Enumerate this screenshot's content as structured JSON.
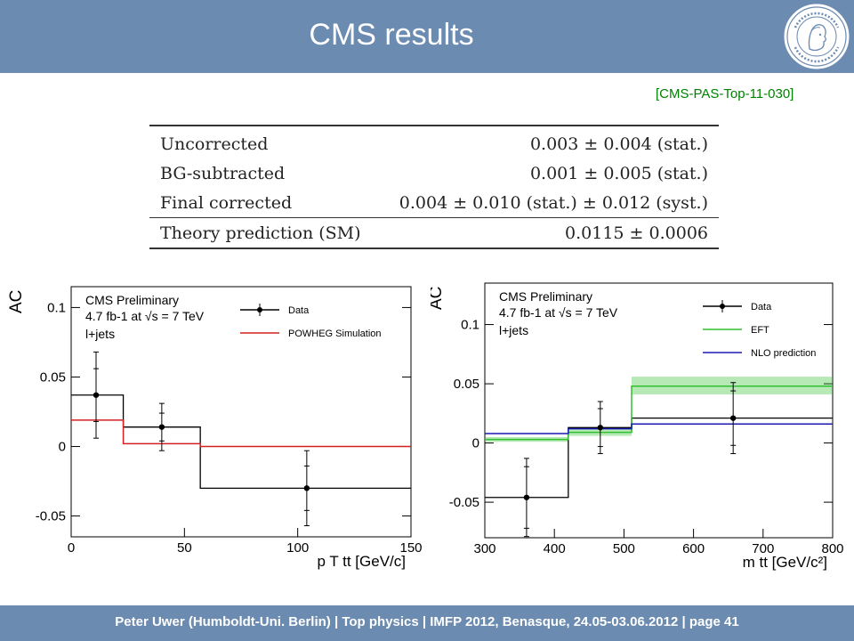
{
  "slide": {
    "title": "CMS results",
    "reference": "[CMS-PAS-Top-11-030]",
    "footer": "Peter Uwer  (Humboldt-Uni. Berlin)  |  Top physics    |  IMFP 2012, Benasque, 24.05-03.06.2012  |  page 41",
    "logo_icon": "humboldt-university-seal-icon"
  },
  "results_table": {
    "rows": [
      {
        "label": "Uncorrected",
        "value": "0.003 ± 0.004 (stat.)"
      },
      {
        "label": "BG-subtracted",
        "value": "0.001 ± 0.005 (stat.)"
      },
      {
        "label": "Final corrected",
        "value": "0.004 ± 0.010 (stat.)  ± 0.012 (syst.)"
      },
      {
        "label": "Theory prediction (SM)",
        "value": "0.0115 ± 0.0006"
      }
    ]
  },
  "chart_data": [
    {
      "type": "line",
      "ylabel": "A_C",
      "xlabel": "p_T tt [GeV/c]",
      "xlim": [
        0,
        150
      ],
      "ylim": [
        -0.065,
        0.115
      ],
      "xticks": [
        "0",
        "50",
        "100",
        "150"
      ],
      "yticks": [
        {
          "v": 0.1,
          "label": "0.1"
        },
        {
          "v": 0.05,
          "label": "0.05"
        },
        {
          "v": 0,
          "label": "0"
        },
        {
          "v": -0.05,
          "label": "-0.05"
        }
      ],
      "texts": {
        "exp": "CMS Preliminary",
        "lumi": "4.7 fb-1 at √s = 7 TeV",
        "channel": "l+jets"
      },
      "legend": [
        {
          "name": "Data",
          "color": "#000000"
        },
        {
          "name": "POWHEG Simulation",
          "color": "#d42020"
        }
      ],
      "bin_edges": [
        0,
        23,
        57,
        150
      ],
      "series": [
        {
          "name": "Data",
          "color": "#000000",
          "values": [
            0.037,
            0.014,
            -0.03
          ],
          "x_centers": [
            11,
            40,
            104
          ],
          "err_stat": [
            0.019,
            0.01,
            0.016
          ],
          "err_tot": [
            0.031,
            0.017,
            0.027
          ]
        },
        {
          "name": "POWHEG Simulation",
          "color": "#d42020",
          "values": [
            0.019,
            0.002,
            0.0
          ]
        }
      ]
    },
    {
      "type": "line",
      "ylabel": "A_C",
      "xlabel": "m_tt [GeV/c²]",
      "xlim": [
        300,
        800
      ],
      "ylim": [
        -0.08,
        0.135
      ],
      "xticks": [
        "300",
        "400",
        "500",
        "600",
        "700",
        "800"
      ],
      "yticks": [
        {
          "v": 0.1,
          "label": "0.1"
        },
        {
          "v": 0.05,
          "label": "0.05"
        },
        {
          "v": 0,
          "label": "0"
        },
        {
          "v": -0.05,
          "label": "-0.05"
        }
      ],
      "texts": {
        "exp": "CMS Preliminary",
        "lumi": "4.7 fb-1 at √s = 7 TeV",
        "channel": "l+jets"
      },
      "legend": [
        {
          "name": "Data",
          "color": "#000000"
        },
        {
          "name": "EFT",
          "color": "#30c030"
        },
        {
          "name": "NLO prediction",
          "color": "#1a1ab0"
        }
      ],
      "bin_edges": [
        300,
        420,
        511,
        800
      ],
      "series": [
        {
          "name": "Data",
          "color": "#000000",
          "values": [
            -0.046,
            0.013,
            0.021
          ],
          "x_centers": [
            360,
            466,
            657
          ],
          "err_stat": [
            0.026,
            0.016,
            0.023
          ],
          "err_tot": [
            0.033,
            0.022,
            0.03
          ]
        },
        {
          "name": "EFT",
          "color": "#30c030",
          "values": [
            0.003,
            0.009,
            0.048
          ],
          "band_low": [
            0.001,
            0.006,
            0.041
          ],
          "band_high": [
            0.005,
            0.012,
            0.056
          ]
        },
        {
          "name": "NLO prediction",
          "color": "#1a1ab0",
          "values": [
            0.008,
            0.012,
            0.016
          ]
        }
      ]
    }
  ]
}
